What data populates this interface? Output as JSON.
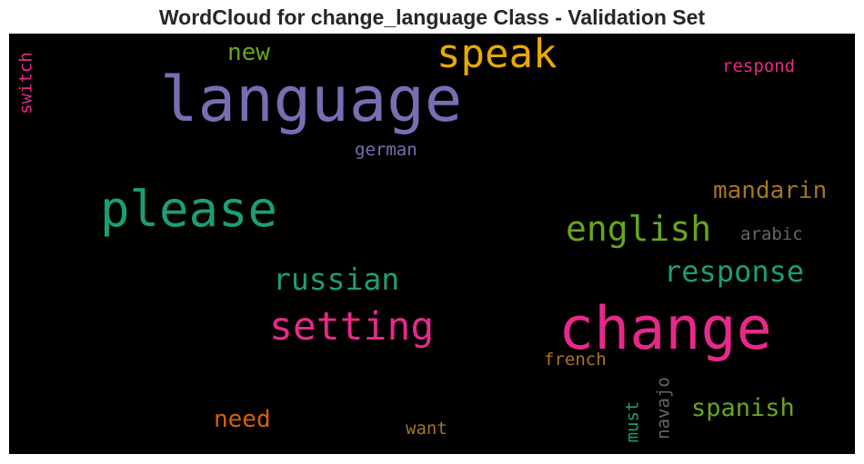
{
  "title": "WordCloud for change_language Class - Validation Set",
  "colors": {
    "background": "#000000",
    "title": "#262626",
    "purple": "#7570b3",
    "teal": "#1b9e77",
    "pink": "#e7298a",
    "gold": "#e6ab02",
    "olive": "#66a61e",
    "brown": "#a6761d",
    "orange": "#d95f02",
    "gray": "#666666"
  },
  "words": [
    {
      "text": "language",
      "color": "#7570b3",
      "orientation": "horizontal"
    },
    {
      "text": "change",
      "color": "#e7298a",
      "orientation": "horizontal"
    },
    {
      "text": "please",
      "color": "#1b9e77",
      "orientation": "horizontal"
    },
    {
      "text": "speak",
      "color": "#e6ab02",
      "orientation": "horizontal"
    },
    {
      "text": "setting",
      "color": "#e7298a",
      "orientation": "horizontal"
    },
    {
      "text": "english",
      "color": "#66a61e",
      "orientation": "horizontal"
    },
    {
      "text": "response",
      "color": "#1b9e77",
      "orientation": "horizontal"
    },
    {
      "text": "russian",
      "color": "#1b9e77",
      "orientation": "horizontal"
    },
    {
      "text": "mandarin",
      "color": "#a6761d",
      "orientation": "horizontal"
    },
    {
      "text": "spanish",
      "color": "#66a61e",
      "orientation": "horizontal"
    },
    {
      "text": "need",
      "color": "#d95f02",
      "orientation": "horizontal"
    },
    {
      "text": "new",
      "color": "#66a61e",
      "orientation": "horizontal"
    },
    {
      "text": "respond",
      "color": "#e7298a",
      "orientation": "horizontal"
    },
    {
      "text": "german",
      "color": "#7570b3",
      "orientation": "horizontal"
    },
    {
      "text": "arabic",
      "color": "#666666",
      "orientation": "horizontal"
    },
    {
      "text": "french",
      "color": "#a6761d",
      "orientation": "horizontal"
    },
    {
      "text": "want",
      "color": "#a6761d",
      "orientation": "horizontal"
    },
    {
      "text": "switch",
      "color": "#e7298a",
      "orientation": "vertical"
    },
    {
      "text": "must",
      "color": "#1b9e77",
      "orientation": "vertical"
    },
    {
      "text": "navajo",
      "color": "#666666",
      "orientation": "vertical"
    }
  ]
}
